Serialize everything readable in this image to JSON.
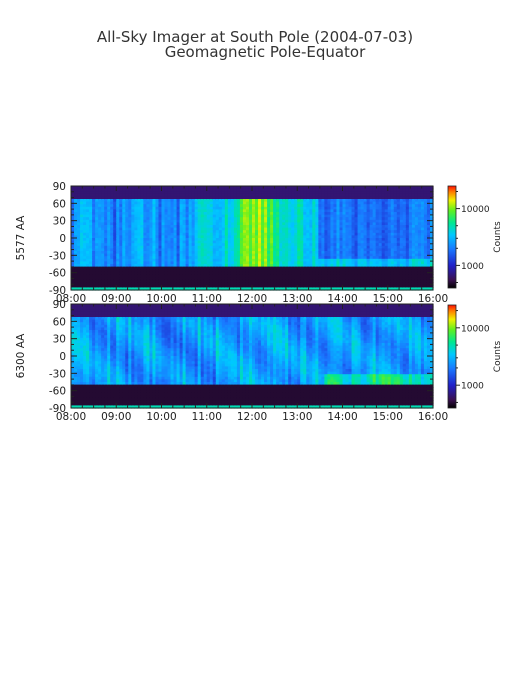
{
  "figure": {
    "title_line1": "All-Sky Imager at South Pole (2004-07-03)",
    "title_line2": "Geomagnetic Pole-Equator"
  },
  "chart_data": [
    {
      "type": "heatmap",
      "ylabel": "5577 AA",
      "xlabel": "",
      "x_ticks": [
        "08:00",
        "09:00",
        "10:00",
        "11:00",
        "12:00",
        "13:00",
        "14:00",
        "15:00",
        "16:00"
      ],
      "x_range": [
        "08:00",
        "16:00"
      ],
      "y_ticks": [
        90,
        60,
        30,
        0,
        -30,
        -60,
        -90
      ],
      "ylim": [
        -90,
        90
      ],
      "colorbar": {
        "label": "Counts",
        "ticks": [
          10000,
          1000
        ],
        "scale": "log"
      },
      "colors": {
        "low": "#1a0a2a",
        "mid": "#1aa0ff",
        "high": "#ff2a00"
      }
    },
    {
      "type": "heatmap",
      "ylabel": "6300 AA",
      "xlabel": "",
      "x_ticks": [
        "08:00",
        "09:00",
        "10:00",
        "11:00",
        "12:00",
        "13:00",
        "14:00",
        "15:00",
        "16:00"
      ],
      "x_range": [
        "08:00",
        "16:00"
      ],
      "y_ticks": [
        90,
        60,
        30,
        0,
        -30,
        -60,
        -90
      ],
      "ylim": [
        -90,
        90
      ],
      "colorbar": {
        "label": "Counts",
        "ticks": [
          10000,
          1000
        ],
        "scale": "log"
      },
      "colors": {
        "low": "#1a0a2a",
        "mid": "#1aa0ff",
        "high": "#ff2a00"
      }
    }
  ]
}
